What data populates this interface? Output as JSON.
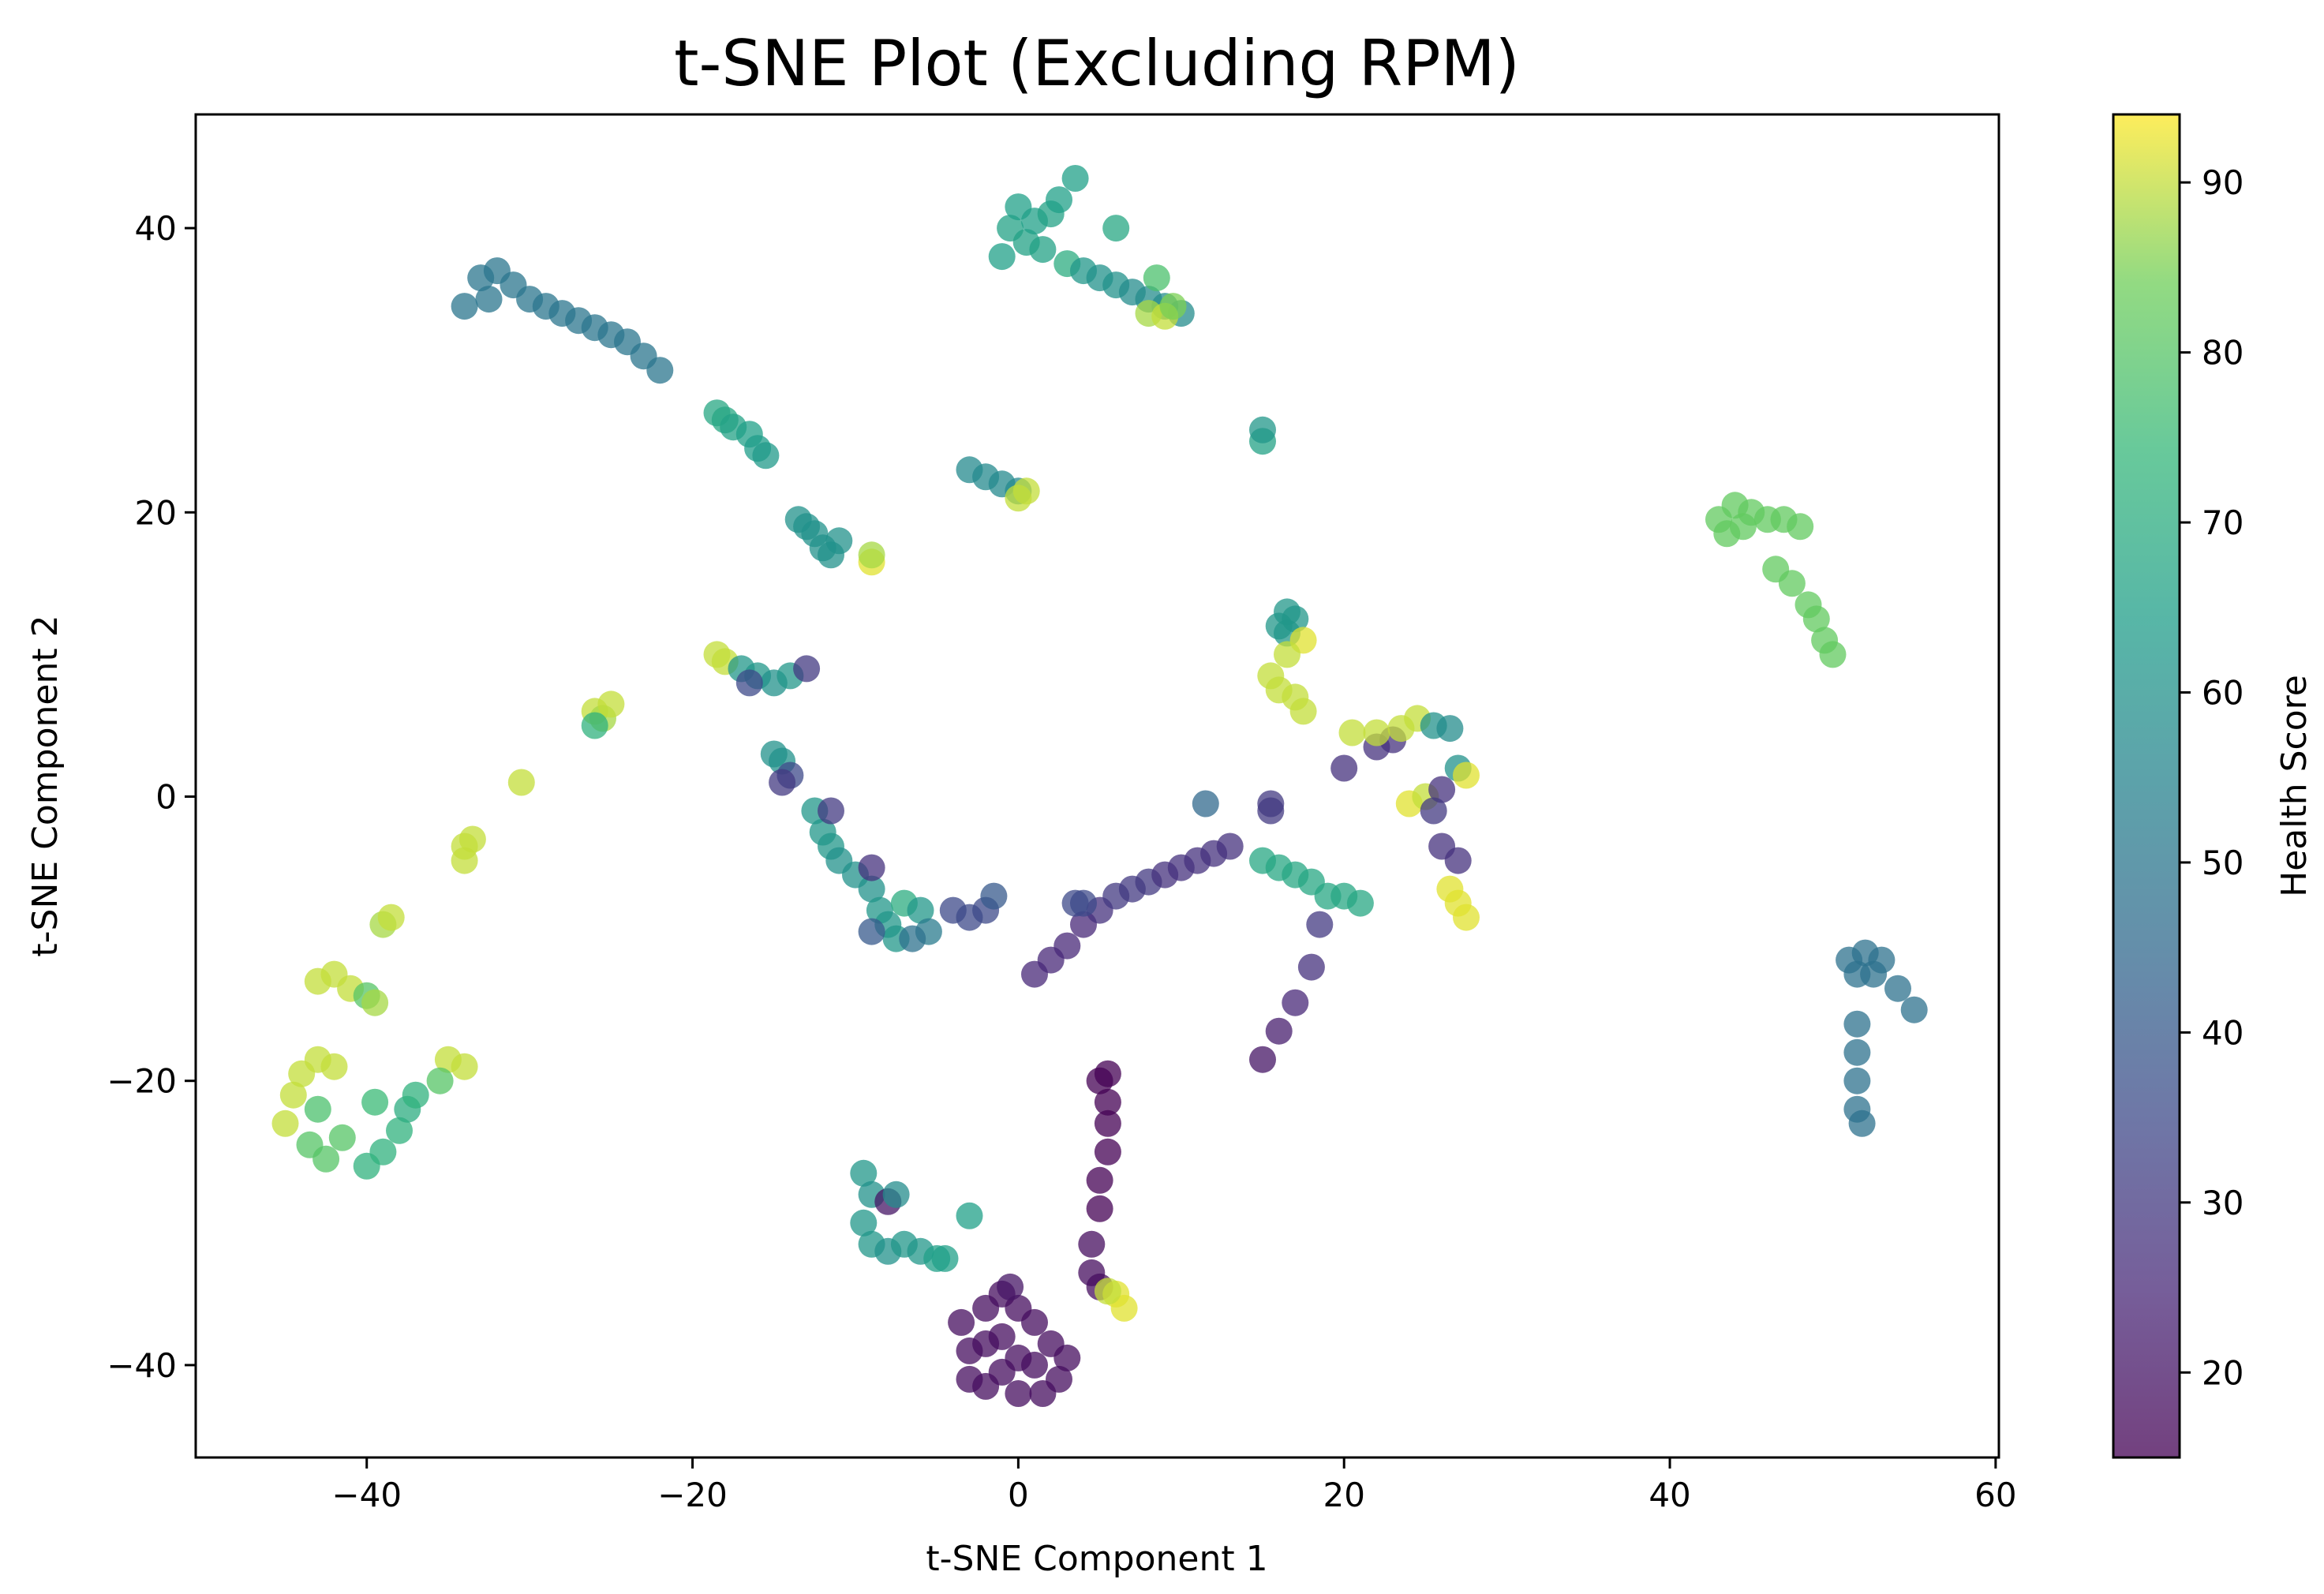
{
  "chart_data": {
    "type": "scatter",
    "title": "t-SNE Plot (Excluding RPM)",
    "xlabel": "t-SNE Component 1",
    "ylabel": "t-SNE Component 2",
    "xlim": [
      -50.5,
      60.2
    ],
    "ylim": [
      -46.5,
      48.0
    ],
    "xticks": [
      -40,
      -20,
      0,
      20,
      40,
      60
    ],
    "yticks": [
      -40,
      -20,
      0,
      20,
      40
    ],
    "xtick_labels": [
      "−40",
      "−20",
      "0",
      "20",
      "40",
      "60"
    ],
    "ytick_labels": [
      "−40",
      "−20",
      "0",
      "20",
      "40"
    ],
    "grid": false,
    "colormap": "viridis",
    "marker_alpha": 0.75,
    "colorbar": {
      "label": "Health Score",
      "range": [
        15,
        94
      ],
      "ticks": [
        20,
        30,
        40,
        50,
        60,
        70,
        80,
        90
      ],
      "tick_labels": [
        "20",
        "30",
        "40",
        "50",
        "60",
        "70",
        "80",
        "90"
      ]
    },
    "points": [
      {
        "x": -34.0,
        "y": 34.5,
        "c": 50
      },
      {
        "x": -33.0,
        "y": 36.5,
        "c": 50
      },
      {
        "x": -32.0,
        "y": 37.0,
        "c": 50
      },
      {
        "x": -31.0,
        "y": 36.0,
        "c": 50
      },
      {
        "x": -30.0,
        "y": 35.0,
        "c": 50
      },
      {
        "x": -29.0,
        "y": 34.5,
        "c": 50
      },
      {
        "x": -28.0,
        "y": 34.0,
        "c": 50
      },
      {
        "x": -27.0,
        "y": 33.5,
        "c": 50
      },
      {
        "x": -26.0,
        "y": 33.0,
        "c": 50
      },
      {
        "x": -25.0,
        "y": 32.5,
        "c": 50
      },
      {
        "x": -24.0,
        "y": 32.0,
        "c": 50
      },
      {
        "x": -23.0,
        "y": 31.0,
        "c": 50
      },
      {
        "x": -22.0,
        "y": 30.0,
        "c": 50
      },
      {
        "x": -32.5,
        "y": 35.0,
        "c": 50
      },
      {
        "x": -18.5,
        "y": 27.0,
        "c": 68
      },
      {
        "x": -18.0,
        "y": 26.5,
        "c": 68
      },
      {
        "x": -17.5,
        "y": 26.0,
        "c": 66
      },
      {
        "x": -16.5,
        "y": 25.5,
        "c": 65
      },
      {
        "x": -16.0,
        "y": 24.5,
        "c": 64
      },
      {
        "x": -15.5,
        "y": 24.0,
        "c": 63
      },
      {
        "x": -13.5,
        "y": 19.5,
        "c": 60
      },
      {
        "x": -13.0,
        "y": 19.0,
        "c": 60
      },
      {
        "x": -12.5,
        "y": 18.5,
        "c": 60
      },
      {
        "x": -12.0,
        "y": 17.5,
        "c": 60
      },
      {
        "x": -11.5,
        "y": 17.0,
        "c": 60
      },
      {
        "x": -11.0,
        "y": 18.0,
        "c": 60
      },
      {
        "x": -9.0,
        "y": 16.5,
        "c": 92
      },
      {
        "x": -9.0,
        "y": 17.0,
        "c": 88
      },
      {
        "x": -3.0,
        "y": 23.0,
        "c": 57
      },
      {
        "x": -2.0,
        "y": 22.5,
        "c": 57
      },
      {
        "x": -1.0,
        "y": 22.0,
        "c": 57
      },
      {
        "x": 0.0,
        "y": 21.5,
        "c": 57
      },
      {
        "x": 0.0,
        "y": 21.0,
        "c": 90
      },
      {
        "x": 0.5,
        "y": 21.5,
        "c": 90
      },
      {
        "x": 15.0,
        "y": 25.0,
        "c": 66
      },
      {
        "x": 15.0,
        "y": 25.8,
        "c": 62
      },
      {
        "x": -1.0,
        "y": 38.0,
        "c": 65
      },
      {
        "x": -0.5,
        "y": 40.0,
        "c": 66
      },
      {
        "x": 0.0,
        "y": 41.5,
        "c": 65
      },
      {
        "x": 0.5,
        "y": 39.0,
        "c": 66
      },
      {
        "x": 1.0,
        "y": 40.5,
        "c": 65
      },
      {
        "x": 1.5,
        "y": 38.5,
        "c": 66
      },
      {
        "x": 2.0,
        "y": 41.0,
        "c": 66
      },
      {
        "x": 2.5,
        "y": 42.0,
        "c": 65
      },
      {
        "x": 3.5,
        "y": 43.5,
        "c": 65
      },
      {
        "x": 3.0,
        "y": 37.5,
        "c": 70
      },
      {
        "x": 4.0,
        "y": 37.0,
        "c": 62
      },
      {
        "x": 5.0,
        "y": 36.5,
        "c": 60
      },
      {
        "x": 6.0,
        "y": 36.0,
        "c": 60
      },
      {
        "x": 7.0,
        "y": 35.5,
        "c": 58
      },
      {
        "x": 8.0,
        "y": 35.0,
        "c": 58
      },
      {
        "x": 9.0,
        "y": 34.5,
        "c": 58
      },
      {
        "x": 10.0,
        "y": 34.0,
        "c": 58
      },
      {
        "x": 6.0,
        "y": 40.0,
        "c": 68
      },
      {
        "x": 8.5,
        "y": 36.5,
        "c": 78
      },
      {
        "x": 8.0,
        "y": 34.0,
        "c": 88
      },
      {
        "x": 9.0,
        "y": 33.8,
        "c": 90
      },
      {
        "x": 9.5,
        "y": 34.5,
        "c": 85
      },
      {
        "x": 43.0,
        "y": 19.5,
        "c": 82
      },
      {
        "x": 43.5,
        "y": 18.5,
        "c": 82
      },
      {
        "x": 44.0,
        "y": 20.5,
        "c": 82
      },
      {
        "x": 44.5,
        "y": 19.0,
        "c": 82
      },
      {
        "x": 45.0,
        "y": 20.0,
        "c": 82
      },
      {
        "x": 46.0,
        "y": 19.5,
        "c": 82
      },
      {
        "x": 47.0,
        "y": 19.5,
        "c": 82
      },
      {
        "x": 48.0,
        "y": 19.0,
        "c": 82
      },
      {
        "x": 46.5,
        "y": 16.0,
        "c": 82
      },
      {
        "x": 47.5,
        "y": 15.0,
        "c": 82
      },
      {
        "x": 48.5,
        "y": 13.5,
        "c": 82
      },
      {
        "x": 49.0,
        "y": 12.5,
        "c": 82
      },
      {
        "x": 49.5,
        "y": 11.0,
        "c": 82
      },
      {
        "x": 50.0,
        "y": 10.0,
        "c": 82
      },
      {
        "x": 51.0,
        "y": -11.5,
        "c": 48
      },
      {
        "x": 52.0,
        "y": -11.0,
        "c": 48
      },
      {
        "x": 53.0,
        "y": -11.5,
        "c": 48
      },
      {
        "x": 51.5,
        "y": -12.5,
        "c": 48
      },
      {
        "x": 52.5,
        "y": -12.5,
        "c": 48
      },
      {
        "x": 54.0,
        "y": -13.5,
        "c": 48
      },
      {
        "x": 55.0,
        "y": -15.0,
        "c": 48
      },
      {
        "x": 51.5,
        "y": -16.0,
        "c": 48
      },
      {
        "x": 51.5,
        "y": -18.0,
        "c": 48
      },
      {
        "x": 51.5,
        "y": -20.0,
        "c": 48
      },
      {
        "x": 51.5,
        "y": -22.0,
        "c": 48
      },
      {
        "x": 51.8,
        "y": -23.0,
        "c": 48
      },
      {
        "x": -26.0,
        "y": 6.0,
        "c": 90
      },
      {
        "x": -25.5,
        "y": 5.5,
        "c": 88
      },
      {
        "x": -26.0,
        "y": 5.0,
        "c": 72
      },
      {
        "x": -25.0,
        "y": 6.5,
        "c": 90
      },
      {
        "x": -30.5,
        "y": 1.0,
        "c": 90
      },
      {
        "x": -34.0,
        "y": -3.5,
        "c": 90
      },
      {
        "x": -34.0,
        "y": -4.5,
        "c": 90
      },
      {
        "x": -33.5,
        "y": -3.0,
        "c": 90
      },
      {
        "x": -39.0,
        "y": -9.0,
        "c": 88
      },
      {
        "x": -38.5,
        "y": -8.5,
        "c": 90
      },
      {
        "x": -43.0,
        "y": -13.0,
        "c": 90
      },
      {
        "x": -42.0,
        "y": -12.5,
        "c": 90
      },
      {
        "x": -41.0,
        "y": -13.5,
        "c": 90
      },
      {
        "x": -40.0,
        "y": -14.0,
        "c": 80
      },
      {
        "x": -39.5,
        "y": -14.5,
        "c": 88
      },
      {
        "x": -45.0,
        "y": -23.0,
        "c": 90
      },
      {
        "x": -44.5,
        "y": -21.0,
        "c": 90
      },
      {
        "x": -44.0,
        "y": -19.5,
        "c": 90
      },
      {
        "x": -43.0,
        "y": -18.5,
        "c": 90
      },
      {
        "x": -42.0,
        "y": -19.0,
        "c": 90
      },
      {
        "x": -43.5,
        "y": -24.5,
        "c": 80
      },
      {
        "x": -42.5,
        "y": -25.5,
        "c": 80
      },
      {
        "x": -41.5,
        "y": -24.0,
        "c": 80
      },
      {
        "x": -40.0,
        "y": -26.0,
        "c": 72
      },
      {
        "x": -39.0,
        "y": -25.0,
        "c": 72
      },
      {
        "x": -38.0,
        "y": -23.5,
        "c": 72
      },
      {
        "x": -37.5,
        "y": -22.0,
        "c": 70
      },
      {
        "x": -37.0,
        "y": -21.0,
        "c": 72
      },
      {
        "x": -39.5,
        "y": -21.5,
        "c": 75
      },
      {
        "x": -43.0,
        "y": -22.0,
        "c": 78
      },
      {
        "x": -35.0,
        "y": -18.5,
        "c": 90
      },
      {
        "x": -34.0,
        "y": -19.0,
        "c": 90
      },
      {
        "x": -35.5,
        "y": -20.0,
        "c": 80
      },
      {
        "x": -18.5,
        "y": 10.0,
        "c": 90
      },
      {
        "x": -18.0,
        "y": 9.5,
        "c": 90
      },
      {
        "x": -17.0,
        "y": 9.0,
        "c": 62
      },
      {
        "x": -16.0,
        "y": 8.5,
        "c": 62
      },
      {
        "x": -15.0,
        "y": 8.0,
        "c": 60
      },
      {
        "x": -14.0,
        "y": 8.5,
        "c": 62
      },
      {
        "x": -13.0,
        "y": 9.0,
        "c": 30
      },
      {
        "x": -16.5,
        "y": 8.0,
        "c": 35
      },
      {
        "x": -15.0,
        "y": 3.0,
        "c": 60
      },
      {
        "x": -14.5,
        "y": 2.5,
        "c": 60
      },
      {
        "x": -14.0,
        "y": 1.5,
        "c": 35
      },
      {
        "x": -14.5,
        "y": 1.0,
        "c": 30
      },
      {
        "x": -12.5,
        "y": -1.0,
        "c": 62
      },
      {
        "x": -12.0,
        "y": -2.5,
        "c": 62
      },
      {
        "x": -11.5,
        "y": -3.5,
        "c": 62
      },
      {
        "x": -11.0,
        "y": -4.5,
        "c": 60
      },
      {
        "x": -10.0,
        "y": -5.5,
        "c": 60
      },
      {
        "x": -9.0,
        "y": -6.5,
        "c": 60
      },
      {
        "x": -8.5,
        "y": -8.0,
        "c": 62
      },
      {
        "x": -8.0,
        "y": -9.0,
        "c": 62
      },
      {
        "x": -7.5,
        "y": -10.0,
        "c": 62
      },
      {
        "x": -11.5,
        "y": -1.0,
        "c": 30
      },
      {
        "x": -9.0,
        "y": -5.0,
        "c": 28
      },
      {
        "x": -7.0,
        "y": -7.5,
        "c": 70
      },
      {
        "x": -6.0,
        "y": -8.0,
        "c": 62
      },
      {
        "x": -5.5,
        "y": -9.5,
        "c": 52
      },
      {
        "x": -4.0,
        "y": -8.0,
        "c": 35
      },
      {
        "x": -3.0,
        "y": -8.5,
        "c": 35
      },
      {
        "x": -2.0,
        "y": -8.0,
        "c": 35
      },
      {
        "x": -1.5,
        "y": -7.0,
        "c": 40
      },
      {
        "x": -9.0,
        "y": -9.5,
        "c": 40
      },
      {
        "x": -6.5,
        "y": -10.0,
        "c": 48
      },
      {
        "x": 1.0,
        "y": -12.5,
        "c": 25
      },
      {
        "x": 2.0,
        "y": -11.5,
        "c": 25
      },
      {
        "x": 3.0,
        "y": -10.5,
        "c": 25
      },
      {
        "x": 4.0,
        "y": -9.0,
        "c": 25
      },
      {
        "x": 5.0,
        "y": -8.0,
        "c": 28
      },
      {
        "x": 6.0,
        "y": -7.0,
        "c": 30
      },
      {
        "x": 7.0,
        "y": -6.5,
        "c": 30
      },
      {
        "x": 8.0,
        "y": -6.0,
        "c": 30
      },
      {
        "x": 9.0,
        "y": -5.5,
        "c": 28
      },
      {
        "x": 10.0,
        "y": -5.0,
        "c": 28
      },
      {
        "x": 11.0,
        "y": -4.5,
        "c": 28
      },
      {
        "x": 12.0,
        "y": -4.0,
        "c": 28
      },
      {
        "x": 13.0,
        "y": -3.5,
        "c": 28
      },
      {
        "x": 4.0,
        "y": -7.5,
        "c": 35
      },
      {
        "x": 3.5,
        "y": -7.5,
        "c": 35
      },
      {
        "x": 11.5,
        "y": -0.5,
        "c": 45
      },
      {
        "x": 15.5,
        "y": -0.5,
        "c": 30
      },
      {
        "x": 15.5,
        "y": -1.0,
        "c": 30
      },
      {
        "x": 15.0,
        "y": -4.5,
        "c": 68
      },
      {
        "x": 16.0,
        "y": -5.0,
        "c": 68
      },
      {
        "x": 17.0,
        "y": -5.5,
        "c": 68
      },
      {
        "x": 18.0,
        "y": -6.0,
        "c": 68
      },
      {
        "x": 19.0,
        "y": -7.0,
        "c": 68
      },
      {
        "x": 20.0,
        "y": -7.0,
        "c": 68
      },
      {
        "x": 21.0,
        "y": -7.5,
        "c": 68
      },
      {
        "x": 18.5,
        "y": -9.0,
        "c": 30
      },
      {
        "x": 18.0,
        "y": -12.0,
        "c": 28
      },
      {
        "x": 17.0,
        "y": -14.5,
        "c": 25
      },
      {
        "x": 16.0,
        "y": -16.5,
        "c": 22
      },
      {
        "x": 15.0,
        "y": -18.5,
        "c": 20
      },
      {
        "x": 16.0,
        "y": 12.0,
        "c": 62
      },
      {
        "x": 16.5,
        "y": 13.0,
        "c": 62
      },
      {
        "x": 17.0,
        "y": 12.5,
        "c": 62
      },
      {
        "x": 16.5,
        "y": 11.5,
        "c": 62
      },
      {
        "x": 17.5,
        "y": 11.0,
        "c": 92
      },
      {
        "x": 16.5,
        "y": 10.0,
        "c": 90
      },
      {
        "x": 15.5,
        "y": 8.5,
        "c": 90
      },
      {
        "x": 16.0,
        "y": 7.5,
        "c": 90
      },
      {
        "x": 17.0,
        "y": 7.0,
        "c": 90
      },
      {
        "x": 17.5,
        "y": 6.0,
        "c": 90
      },
      {
        "x": 20.0,
        "y": 2.0,
        "c": 28
      },
      {
        "x": 22.0,
        "y": 3.5,
        "c": 28
      },
      {
        "x": 23.0,
        "y": 4.0,
        "c": 28
      },
      {
        "x": 20.5,
        "y": 4.5,
        "c": 90
      },
      {
        "x": 22.0,
        "y": 4.5,
        "c": 90
      },
      {
        "x": 23.5,
        "y": 4.8,
        "c": 90
      },
      {
        "x": 24.5,
        "y": 5.5,
        "c": 90
      },
      {
        "x": 25.5,
        "y": 5.0,
        "c": 60
      },
      {
        "x": 26.5,
        "y": 4.8,
        "c": 58
      },
      {
        "x": 24.0,
        "y": -0.5,
        "c": 92
      },
      {
        "x": 25.0,
        "y": 0.0,
        "c": 90
      },
      {
        "x": 26.0,
        "y": 0.5,
        "c": 28
      },
      {
        "x": 27.0,
        "y": 2.0,
        "c": 60
      },
      {
        "x": 27.5,
        "y": 1.5,
        "c": 92
      },
      {
        "x": 25.5,
        "y": -1.0,
        "c": 30
      },
      {
        "x": 26.0,
        "y": -3.5,
        "c": 28
      },
      {
        "x": 27.0,
        "y": -4.5,
        "c": 28
      },
      {
        "x": 26.5,
        "y": -6.5,
        "c": 92
      },
      {
        "x": 27.0,
        "y": -7.5,
        "c": 92
      },
      {
        "x": 27.5,
        "y": -8.5,
        "c": 92
      },
      {
        "x": -9.5,
        "y": -26.5,
        "c": 62
      },
      {
        "x": -9.0,
        "y": -28.0,
        "c": 60
      },
      {
        "x": -9.5,
        "y": -30.0,
        "c": 62
      },
      {
        "x": -9.0,
        "y": -31.5,
        "c": 62
      },
      {
        "x": -8.0,
        "y": -32.0,
        "c": 60
      },
      {
        "x": -7.0,
        "y": -31.5,
        "c": 62
      },
      {
        "x": -6.0,
        "y": -32.0,
        "c": 62
      },
      {
        "x": -5.0,
        "y": -32.5,
        "c": 65
      },
      {
        "x": -4.5,
        "y": -32.5,
        "c": 65
      },
      {
        "x": -8.0,
        "y": -28.5,
        "c": 20
      },
      {
        "x": -7.5,
        "y": -28.0,
        "c": 58
      },
      {
        "x": -3.0,
        "y": -29.5,
        "c": 65
      },
      {
        "x": -3.5,
        "y": -37.0,
        "c": 18
      },
      {
        "x": -3.0,
        "y": -39.0,
        "c": 18
      },
      {
        "x": -3.0,
        "y": -41.0,
        "c": 18
      },
      {
        "x": -2.0,
        "y": -36.0,
        "c": 18
      },
      {
        "x": -2.0,
        "y": -38.5,
        "c": 18
      },
      {
        "x": -2.0,
        "y": -41.5,
        "c": 18
      },
      {
        "x": -1.0,
        "y": -35.0,
        "c": 18
      },
      {
        "x": -1.0,
        "y": -38.0,
        "c": 18
      },
      {
        "x": -1.0,
        "y": -40.5,
        "c": 18
      },
      {
        "x": 0.0,
        "y": -36.0,
        "c": 18
      },
      {
        "x": 0.0,
        "y": -39.5,
        "c": 18
      },
      {
        "x": 0.0,
        "y": -42.0,
        "c": 18
      },
      {
        "x": 1.0,
        "y": -37.0,
        "c": 18
      },
      {
        "x": 1.0,
        "y": -40.0,
        "c": 18
      },
      {
        "x": 1.5,
        "y": -42.0,
        "c": 18
      },
      {
        "x": 2.0,
        "y": -38.5,
        "c": 18
      },
      {
        "x": 2.5,
        "y": -41.0,
        "c": 18
      },
      {
        "x": 3.0,
        "y": -39.5,
        "c": 18
      },
      {
        "x": -0.5,
        "y": -34.5,
        "c": 20
      },
      {
        "x": 4.5,
        "y": -31.5,
        "c": 18
      },
      {
        "x": 4.5,
        "y": -33.5,
        "c": 18
      },
      {
        "x": 5.0,
        "y": -34.5,
        "c": 18
      },
      {
        "x": 5.0,
        "y": -29.0,
        "c": 15
      },
      {
        "x": 5.0,
        "y": -27.0,
        "c": 15
      },
      {
        "x": 5.5,
        "y": -25.0,
        "c": 15
      },
      {
        "x": 5.5,
        "y": -23.0,
        "c": 15
      },
      {
        "x": 5.5,
        "y": -21.5,
        "c": 15
      },
      {
        "x": 5.0,
        "y": -20.0,
        "c": 15
      },
      {
        "x": 5.5,
        "y": -19.5,
        "c": 15
      },
      {
        "x": 6.0,
        "y": -35.0,
        "c": 92
      },
      {
        "x": 6.5,
        "y": -36.0,
        "c": 92
      },
      {
        "x": 5.5,
        "y": -34.8,
        "c": 90
      }
    ]
  }
}
